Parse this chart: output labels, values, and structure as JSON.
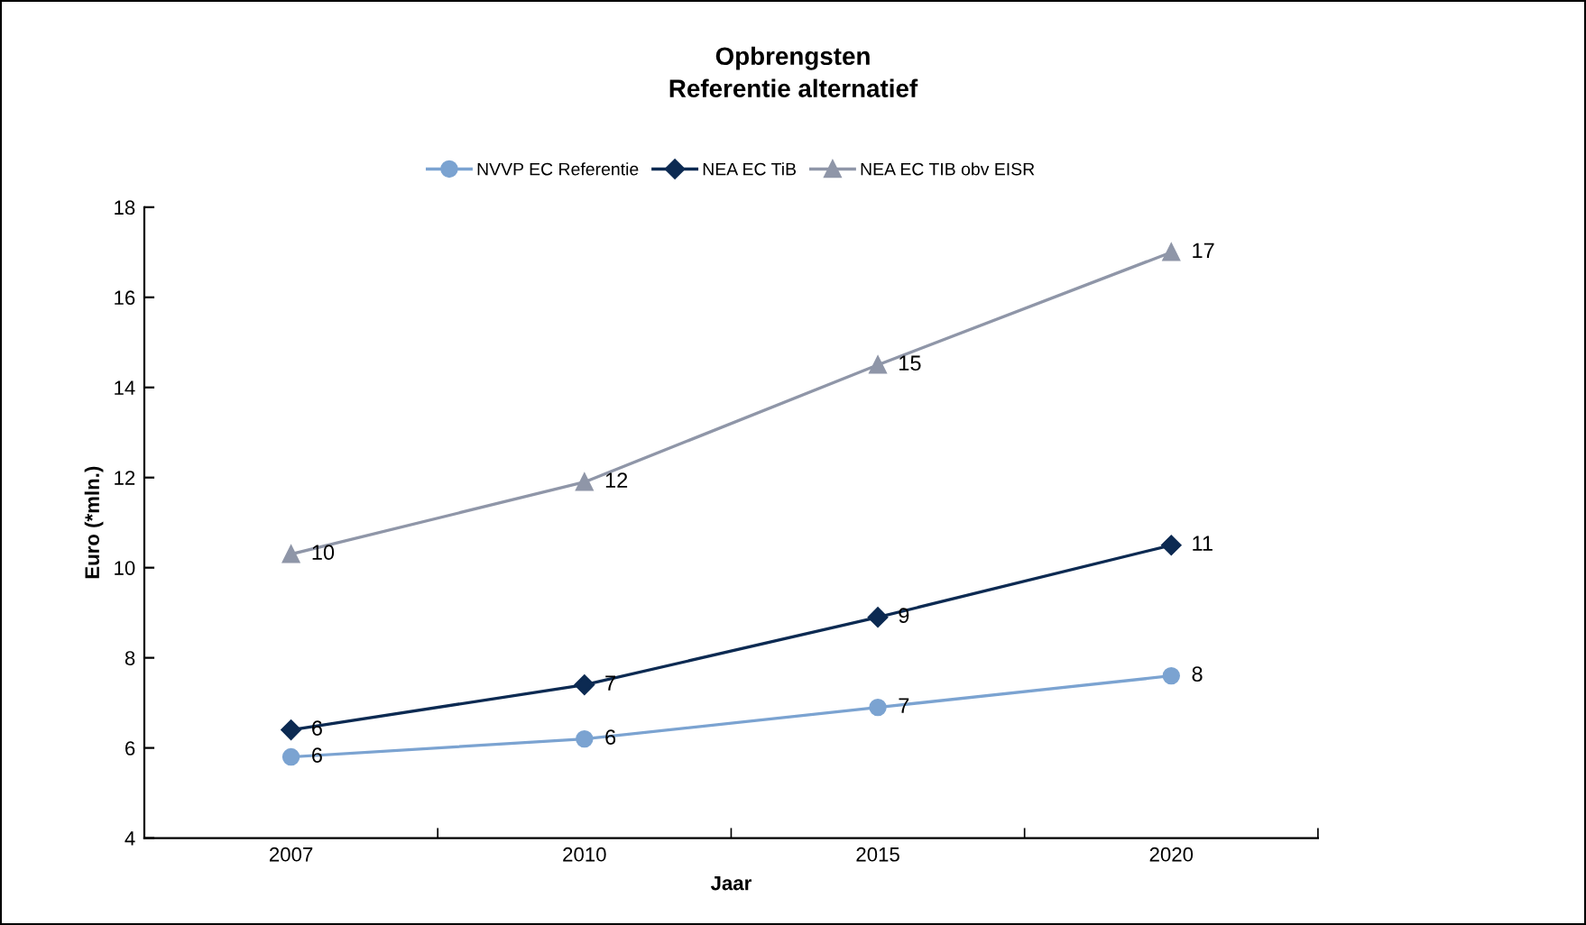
{
  "chart_data": {
    "type": "line",
    "title": "Opbrengsten",
    "subtitle": "Referentie alternatief",
    "xlabel": "Jaar",
    "ylabel": "Euro (*mln.)",
    "categories": [
      "2007",
      "2010",
      "2015",
      "2020"
    ],
    "series": [
      {
        "name": "NVVP EC Referentie",
        "color": "#7ba3d1",
        "marker": "circle",
        "values": [
          5.8,
          6.2,
          6.9,
          7.6
        ],
        "value_labels": [
          "6",
          "6",
          "7",
          "8"
        ]
      },
      {
        "name": "NEA EC TiB",
        "color": "#0c2a52",
        "marker": "diamond",
        "values": [
          6.4,
          7.4,
          8.9,
          10.5
        ],
        "value_labels": [
          "6",
          "7",
          "9",
          "11"
        ]
      },
      {
        "name": "NEA EC TIB obv EISR",
        "color": "#8f96a8",
        "marker": "triangle",
        "values": [
          10.3,
          11.9,
          14.5,
          17.0
        ],
        "value_labels": [
          "10",
          "12",
          "15",
          "17"
        ]
      }
    ],
    "ylim": [
      4,
      18
    ],
    "yticks": [
      4,
      6,
      8,
      10,
      12,
      14,
      16,
      18
    ],
    "grid": false,
    "legend": "top",
    "line_style": "solid"
  }
}
